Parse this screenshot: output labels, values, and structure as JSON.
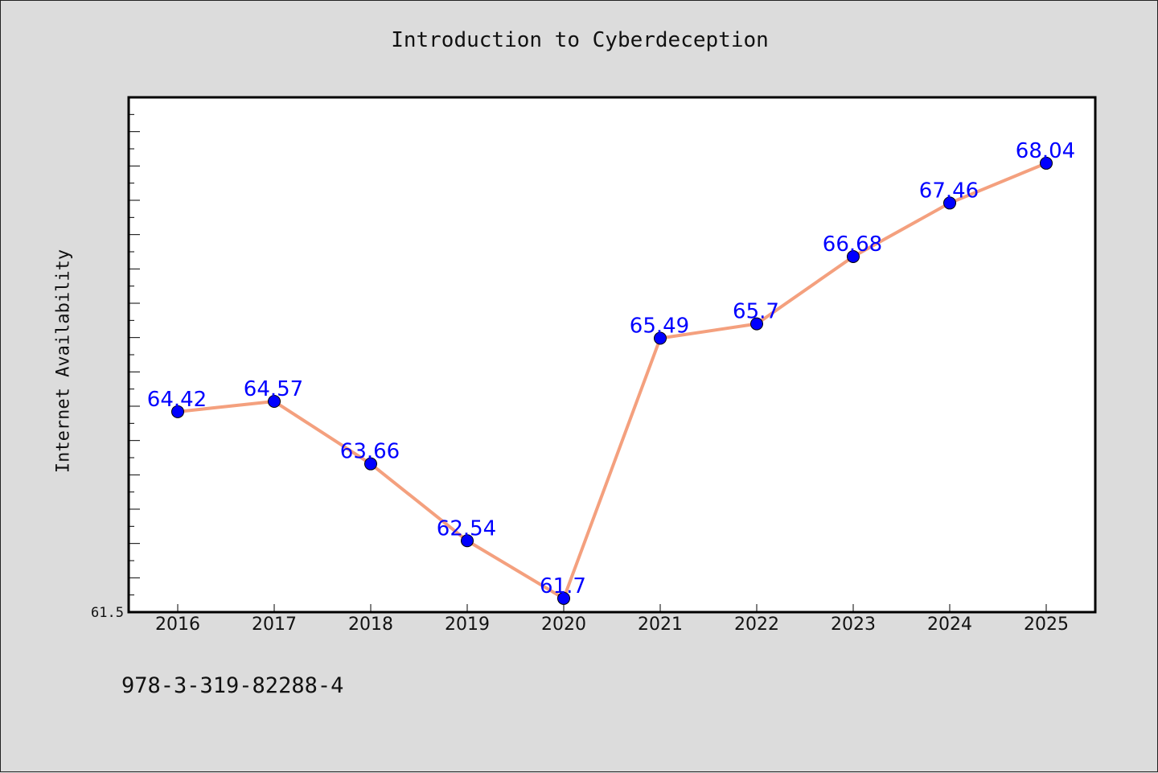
{
  "chart_data": {
    "type": "line",
    "title": "Introduction to Cyberdeception",
    "xlabel": "",
    "ylabel": "Internet Availability",
    "categories": [
      "2016",
      "2017",
      "2018",
      "2019",
      "2020",
      "2021",
      "2022",
      "2023",
      "2024",
      "2025"
    ],
    "series": [
      {
        "values": [
          64.42,
          64.57,
          63.66,
          62.54,
          61.7,
          65.49,
          65.7,
          66.68,
          67.46,
          68.04
        ]
      }
    ],
    "data_labels": [
      "64.42",
      "64.57",
      "63.66",
      "62.54",
      "61.7",
      "65.49",
      "65.7",
      "66.68",
      "67.46",
      "68.04"
    ],
    "ylim": [
      61.5,
      69.0
    ],
    "y_min_tick_label": "61.5",
    "grid": false,
    "line_color": "#f4a07e",
    "marker_color": "#0000ff",
    "label_color": "#0000ff"
  },
  "footer": {
    "isbn": "978-3-319-82288-4"
  }
}
